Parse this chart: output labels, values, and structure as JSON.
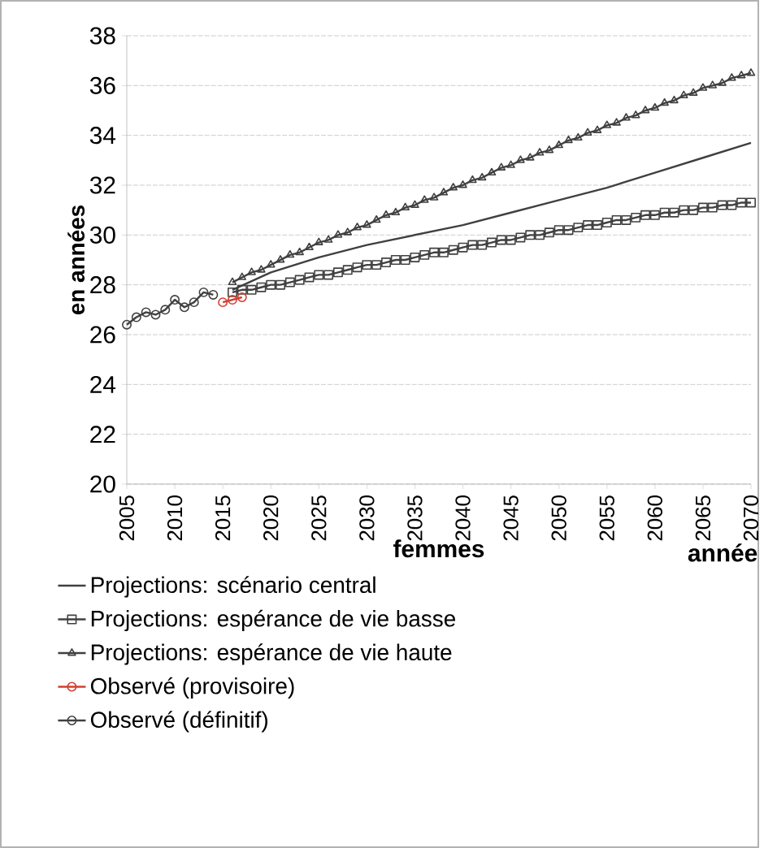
{
  "chart_data": {
    "type": "line",
    "xlabel": "femmes",
    "ylabel": "en années",
    "annotations": [
      "année"
    ],
    "xlim": [
      2005,
      2070
    ],
    "xticks": [
      2005,
      2010,
      2015,
      2020,
      2025,
      2030,
      2035,
      2040,
      2045,
      2050,
      2055,
      2060,
      2065,
      2070
    ],
    "ylim": [
      20,
      38
    ],
    "yticks": [
      20,
      22,
      24,
      26,
      28,
      30,
      32,
      34,
      36,
      38
    ],
    "grid": "y",
    "legend": "bottom",
    "series": [
      {
        "name": "Projections: scénario central",
        "color": "#404040",
        "marker": "none",
        "x": [
          2016,
          2020,
          2025,
          2030,
          2035,
          2040,
          2045,
          2050,
          2055,
          2060,
          2065,
          2070
        ],
        "values": [
          27.8,
          28.5,
          29.1,
          29.6,
          30.0,
          30.4,
          30.9,
          31.4,
          31.9,
          32.5,
          33.1,
          33.7
        ]
      },
      {
        "name": "Projections: espérance de vie basse",
        "color": "#404040",
        "marker": "square",
        "x": [
          2016,
          2017,
          2018,
          2019,
          2020,
          2021,
          2022,
          2023,
          2024,
          2025,
          2026,
          2027,
          2028,
          2029,
          2030,
          2031,
          2032,
          2033,
          2034,
          2035,
          2036,
          2037,
          2038,
          2039,
          2040,
          2041,
          2042,
          2043,
          2044,
          2045,
          2046,
          2047,
          2048,
          2049,
          2050,
          2051,
          2052,
          2053,
          2054,
          2055,
          2056,
          2057,
          2058,
          2059,
          2060,
          2061,
          2062,
          2063,
          2064,
          2065,
          2066,
          2067,
          2068,
          2069,
          2070
        ],
        "values": [
          27.7,
          27.8,
          27.8,
          27.9,
          28.0,
          28.0,
          28.1,
          28.2,
          28.3,
          28.4,
          28.4,
          28.5,
          28.6,
          28.7,
          28.8,
          28.8,
          28.9,
          29.0,
          29.0,
          29.1,
          29.2,
          29.3,
          29.3,
          29.4,
          29.5,
          29.6,
          29.6,
          29.7,
          29.8,
          29.8,
          29.9,
          30.0,
          30.0,
          30.1,
          30.2,
          30.2,
          30.3,
          30.4,
          30.4,
          30.5,
          30.6,
          30.6,
          30.7,
          30.8,
          30.8,
          30.9,
          30.9,
          31.0,
          31.0,
          31.1,
          31.1,
          31.2,
          31.2,
          31.3,
          31.3
        ]
      },
      {
        "name": "Projections: espérance de vie haute",
        "color": "#404040",
        "marker": "triangle",
        "x": [
          2016,
          2017,
          2018,
          2019,
          2020,
          2021,
          2022,
          2023,
          2024,
          2025,
          2026,
          2027,
          2028,
          2029,
          2030,
          2031,
          2032,
          2033,
          2034,
          2035,
          2036,
          2037,
          2038,
          2039,
          2040,
          2041,
          2042,
          2043,
          2044,
          2045,
          2046,
          2047,
          2048,
          2049,
          2050,
          2051,
          2052,
          2053,
          2054,
          2055,
          2056,
          2057,
          2058,
          2059,
          2060,
          2061,
          2062,
          2063,
          2064,
          2065,
          2066,
          2067,
          2068,
          2069,
          2070
        ],
        "values": [
          28.1,
          28.3,
          28.5,
          28.6,
          28.8,
          29.0,
          29.2,
          29.3,
          29.5,
          29.7,
          29.8,
          30.0,
          30.1,
          30.3,
          30.4,
          30.6,
          30.8,
          30.9,
          31.1,
          31.2,
          31.4,
          31.5,
          31.7,
          31.9,
          32.0,
          32.2,
          32.3,
          32.5,
          32.7,
          32.8,
          33.0,
          33.1,
          33.3,
          33.4,
          33.6,
          33.8,
          33.9,
          34.1,
          34.2,
          34.4,
          34.5,
          34.7,
          34.8,
          35.0,
          35.1,
          35.3,
          35.4,
          35.6,
          35.7,
          35.9,
          36.0,
          36.1,
          36.3,
          36.4,
          36.5
        ]
      },
      {
        "name": "Observé (provisoire)",
        "color": "#d04030",
        "marker": "circle",
        "x": [
          2015,
          2016,
          2017
        ],
        "values": [
          27.3,
          27.4,
          27.5
        ]
      },
      {
        "name": "Observé (définitif)",
        "color": "#404040",
        "marker": "circle",
        "x": [
          2005,
          2006,
          2007,
          2008,
          2009,
          2010,
          2011,
          2012,
          2013,
          2014
        ],
        "values": [
          26.4,
          26.7,
          26.9,
          26.8,
          27.0,
          27.4,
          27.1,
          27.3,
          27.7,
          27.6
        ]
      }
    ]
  }
}
